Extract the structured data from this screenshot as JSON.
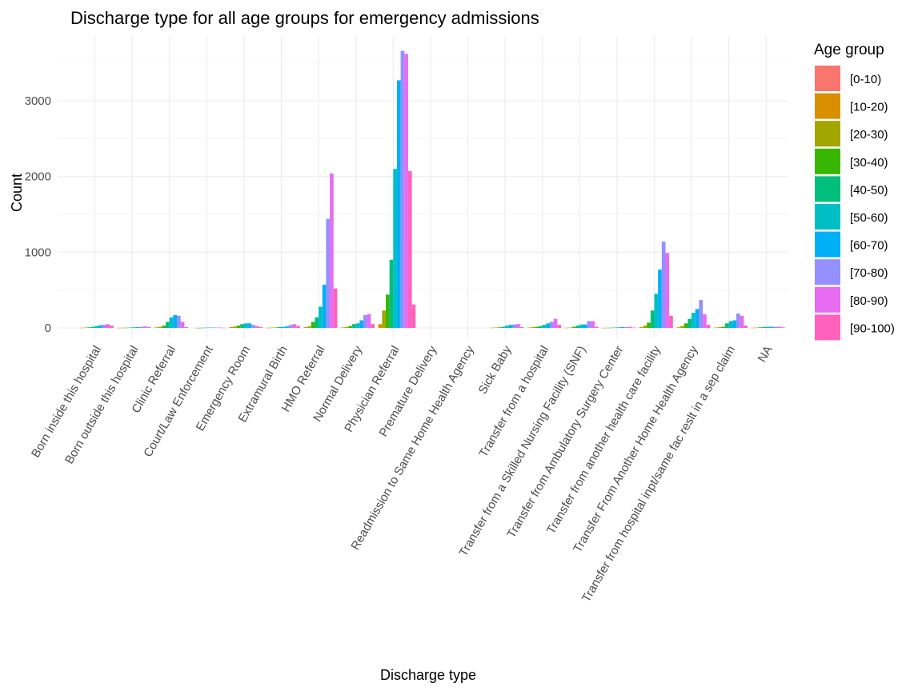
{
  "chart_data": {
    "type": "bar",
    "title": "Discharge type for all age groups for emergency admissions",
    "xlabel": "Discharge type",
    "ylabel": "Count",
    "ylim": [
      -160,
      3750
    ],
    "yticks": [
      0,
      1000,
      2000,
      3000
    ],
    "grid": true,
    "legend": {
      "title": "Age group",
      "placement": "right"
    },
    "categories": [
      "Born inside this hospital",
      "Born outside this hospital",
      "Clinic Referral",
      "Court/Law Enforcement",
      "Emergency Room",
      "Extramural Birth",
      "HMO Referral",
      "Normal Delivery",
      "Physician Referral",
      "Premature Delivery",
      "Readmission to Same Home Health Agency",
      "Sick Baby",
      "Transfer from a hospital",
      "Transfer from a Skilled Nursing Facility (SNF)",
      "Transfer from Ambulatory Surgery Center",
      "Transfer from another health care facility",
      "Transfer From Another Home Health Agency",
      "Transfer from hospital inpt/same fac reslt in a sep claim",
      "NA"
    ],
    "series": [
      {
        "name": "[0-10)",
        "color": "#F8766D",
        "values": [
          0,
          0,
          0,
          0,
          0,
          0,
          0,
          0,
          0,
          0,
          0,
          0,
          0,
          0,
          0,
          0,
          0,
          0,
          0
        ]
      },
      {
        "name": "[10-20)",
        "color": "#D89000",
        "values": [
          2,
          1,
          8,
          0,
          10,
          2,
          10,
          6,
          50,
          0,
          0,
          3,
          5,
          2,
          1,
          10,
          8,
          5,
          2
        ]
      },
      {
        "name": "[20-30)",
        "color": "#A3A500",
        "values": [
          5,
          2,
          15,
          1,
          18,
          4,
          20,
          12,
          230,
          0,
          0,
          5,
          10,
          5,
          2,
          30,
          25,
          10,
          5
        ]
      },
      {
        "name": "[30-40)",
        "color": "#39B600",
        "values": [
          8,
          3,
          30,
          2,
          30,
          6,
          80,
          25,
          440,
          0,
          0,
          8,
          15,
          15,
          3,
          70,
          60,
          15,
          8
        ]
      },
      {
        "name": "[40-50)",
        "color": "#00BF7D",
        "values": [
          15,
          5,
          80,
          3,
          50,
          12,
          140,
          50,
          900,
          0,
          0,
          15,
          25,
          30,
          5,
          230,
          120,
          60,
          12
        ]
      },
      {
        "name": "[50-60)",
        "color": "#00BFC4",
        "values": [
          25,
          8,
          140,
          5,
          60,
          15,
          280,
          60,
          2100,
          0,
          0,
          30,
          40,
          45,
          8,
          450,
          200,
          90,
          15
        ]
      },
      {
        "name": "[60-70)",
        "color": "#00B0F6",
        "values": [
          35,
          10,
          170,
          5,
          60,
          20,
          570,
          100,
          3270,
          0,
          0,
          40,
          60,
          45,
          10,
          770,
          250,
          100,
          15
        ]
      },
      {
        "name": "[70-80)",
        "color": "#9590FF",
        "values": [
          40,
          15,
          160,
          5,
          40,
          40,
          1440,
          170,
          3660,
          0,
          0,
          45,
          80,
          90,
          12,
          1140,
          370,
          190,
          15
        ]
      },
      {
        "name": "[80-90)",
        "color": "#E76BF3",
        "values": [
          50,
          20,
          80,
          5,
          25,
          50,
          2040,
          180,
          3620,
          0,
          0,
          50,
          120,
          90,
          15,
          990,
          180,
          160,
          15
        ]
      },
      {
        "name": "[90-100)",
        "color": "#FF62BC",
        "values": [
          30,
          10,
          10,
          2,
          10,
          25,
          520,
          50,
          2070,
          0,
          0,
          10,
          40,
          15,
          5,
          160,
          40,
          30,
          8
        ]
      }
    ],
    "extra_bars": [
      {
        "category_index": 8,
        "after_series": "[90-100)",
        "color": "#FF62BC",
        "value": 310
      }
    ]
  }
}
